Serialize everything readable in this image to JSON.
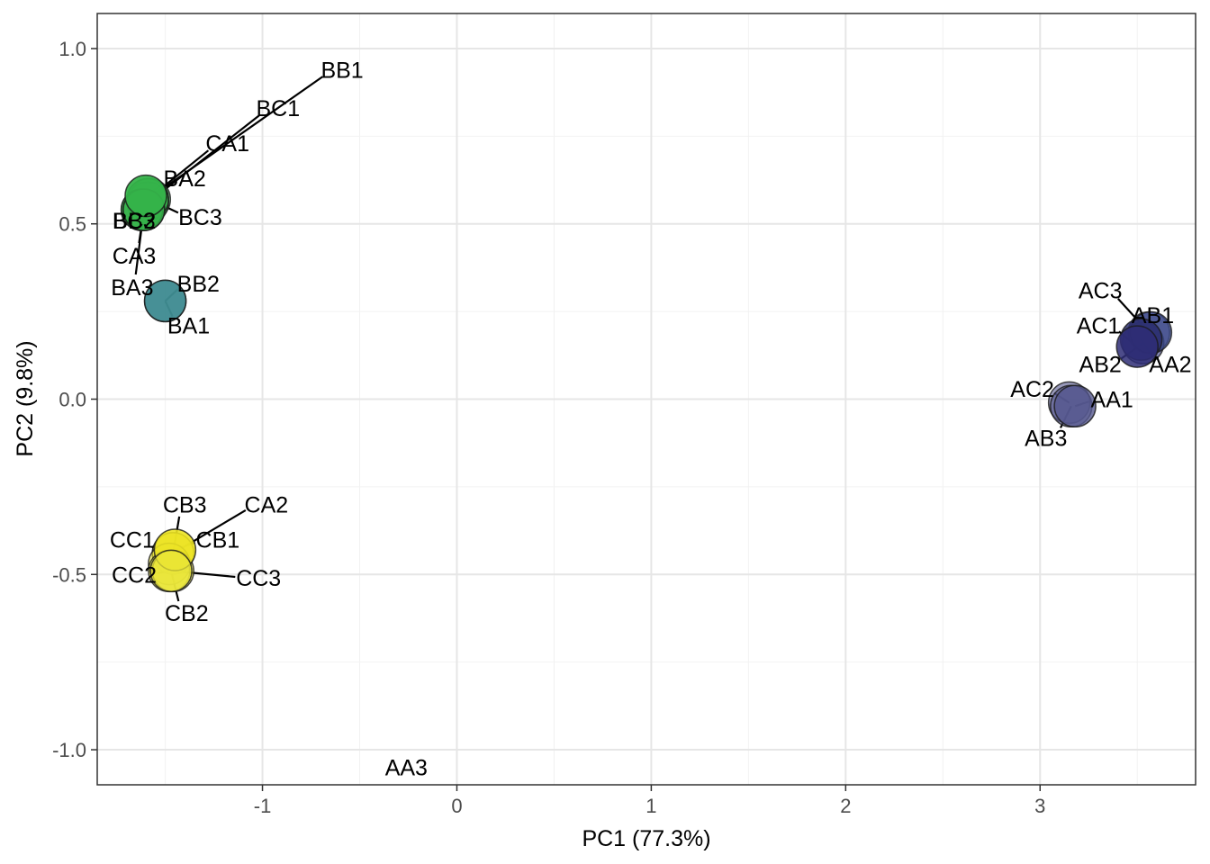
{
  "chart_data": {
    "type": "scatter",
    "title": "",
    "xlabel": "PC1 (77.3%)",
    "ylabel": "PC2 (9.8%)",
    "xlim": [
      -1.85,
      3.8
    ],
    "ylim": [
      -1.1,
      1.1
    ],
    "x_ticks": [
      -1,
      0,
      1,
      2,
      3
    ],
    "x_tick_labels": [
      "-1",
      "0",
      "1",
      "2",
      "3"
    ],
    "y_ticks": [
      -1.0,
      -0.5,
      0.0,
      0.5,
      1.0
    ],
    "y_tick_labels": [
      "-1.0",
      "-0.5",
      "0.0",
      "0.5",
      "1.0"
    ],
    "grid": true,
    "legend": "none",
    "group_colors": {
      "AA": "#440154",
      "AB": "#3b528b",
      "AC": "#482878",
      "BA": "#21908c",
      "BB": "#35b779",
      "BC": "#5ec962",
      "CA": "#cde11d",
      "CB": "#fde725",
      "CC": "#e5e419"
    },
    "points": [
      {
        "label": "AB1",
        "x": 3.57,
        "y": 0.19,
        "color": "#3b4a8b",
        "opacity": 0.75,
        "show": true,
        "lx": 3.58,
        "ly": 0.24
      },
      {
        "label": "AA2",
        "x": 3.52,
        "y": 0.17,
        "color": "#2b2e6e",
        "opacity": 0.85,
        "show": true,
        "lx": 3.67,
        "ly": 0.1
      },
      {
        "label": "AC1",
        "x": 3.5,
        "y": 0.15,
        "color": "#2e2d75",
        "opacity": 0.85,
        "show": true,
        "lx": 3.3,
        "ly": 0.21
      },
      {
        "label": "AC3",
        "x": 3.56,
        "y": 0.19,
        "color": "#353a80",
        "opacity": 0.6,
        "show": false,
        "lx": 3.31,
        "ly": 0.31
      },
      {
        "label": "AB2",
        "x": 3.53,
        "y": 0.16,
        "color": "#353a80",
        "opacity": 0.6,
        "show": false,
        "lx": 3.31,
        "ly": 0.1
      },
      {
        "label": "AA1",
        "x": 3.18,
        "y": -0.02,
        "color": "#55578f",
        "opacity": 0.8,
        "show": true,
        "lx": 3.37,
        "ly": 0.0
      },
      {
        "label": "AC2",
        "x": 3.15,
        "y": -0.01,
        "color": "#55578f",
        "opacity": 0.6,
        "show": false,
        "lx": 2.96,
        "ly": 0.03
      },
      {
        "label": "AB3",
        "x": 3.16,
        "y": -0.02,
        "color": "#55578f",
        "opacity": 0.6,
        "show": false,
        "lx": 3.03,
        "ly": -0.11
      },
      {
        "label": "AA3",
        "x": -0.26,
        "y": -1.14,
        "color": "#440154",
        "opacity": 0.8,
        "show": false,
        "lx": -0.26,
        "ly": -1.05
      },
      {
        "label": "BA2",
        "x": -1.6,
        "y": 0.58,
        "color": "#35b34a",
        "opacity": 0.95,
        "show": true,
        "lx": -1.4,
        "ly": 0.63
      },
      {
        "label": "BC3",
        "x": -1.58,
        "y": 0.57,
        "color": "#35b34a",
        "opacity": 0.6,
        "show": false,
        "lx": -1.32,
        "ly": 0.52
      },
      {
        "label": "BB1",
        "x": -1.59,
        "y": 0.57,
        "color": "#35b34a",
        "opacity": 0.6,
        "show": false,
        "lx": -0.59,
        "ly": 0.94
      },
      {
        "label": "BC1",
        "x": -1.59,
        "y": 0.56,
        "color": "#35b34a",
        "opacity": 0.6,
        "show": false,
        "lx": -0.92,
        "ly": 0.83
      },
      {
        "label": "CA1",
        "x": -1.59,
        "y": 0.57,
        "color": "#35b34a",
        "opacity": 0.6,
        "show": false,
        "lx": -1.18,
        "ly": 0.73
      },
      {
        "label": "BB3",
        "x": -1.62,
        "y": 0.54,
        "color": "#35b34a",
        "opacity": 0.6,
        "show": false,
        "lx": -1.66,
        "ly": 0.51
      },
      {
        "label": "BC2",
        "x": -1.62,
        "y": 0.54,
        "color": "#35b34a",
        "opacity": 0.6,
        "show": false,
        "lx": -1.66,
        "ly": 0.51
      },
      {
        "label": "CA3",
        "x": -1.61,
        "y": 0.54,
        "color": "#35b34a",
        "opacity": 0.6,
        "show": false,
        "lx": -1.66,
        "ly": 0.41
      },
      {
        "label": "BA3",
        "x": -1.61,
        "y": 0.54,
        "color": "#35b34a",
        "opacity": 0.6,
        "show": false,
        "lx": -1.67,
        "ly": 0.32
      },
      {
        "label": "BA1",
        "x": -1.5,
        "y": 0.28,
        "color": "#3f8c91",
        "opacity": 0.9,
        "show": true,
        "lx": -1.38,
        "ly": 0.21
      },
      {
        "label": "BB2",
        "x": -1.5,
        "y": 0.28,
        "color": "#3f8c91",
        "opacity": 0.6,
        "show": false,
        "lx": -1.33,
        "ly": 0.33
      },
      {
        "label": "CB1",
        "x": -1.45,
        "y": -0.43,
        "color": "#ece322",
        "opacity": 0.9,
        "show": true,
        "lx": -1.23,
        "ly": -0.4
      },
      {
        "label": "CB2",
        "x": -1.47,
        "y": -0.49,
        "color": "#e9e63a",
        "opacity": 0.75,
        "show": true,
        "lx": -1.39,
        "ly": -0.61
      },
      {
        "label": "CB3",
        "x": -1.46,
        "y": -0.44,
        "color": "#e9e63a",
        "opacity": 0.6,
        "show": false,
        "lx": -1.4,
        "ly": -0.3
      },
      {
        "label": "CA2",
        "x": -1.46,
        "y": -0.44,
        "color": "#e9e63a",
        "opacity": 0.6,
        "show": false,
        "lx": -0.98,
        "ly": -0.3
      },
      {
        "label": "CC1",
        "x": -1.48,
        "y": -0.47,
        "color": "#e9e63a",
        "opacity": 0.6,
        "show": false,
        "lx": -1.67,
        "ly": -0.4
      },
      {
        "label": "CC2",
        "x": -1.48,
        "y": -0.49,
        "color": "#e9e63a",
        "opacity": 0.6,
        "show": false,
        "lx": -1.66,
        "ly": -0.5
      },
      {
        "label": "CC3",
        "x": -1.46,
        "y": -0.49,
        "color": "#e9e63a",
        "opacity": 0.6,
        "show": false,
        "lx": -1.02,
        "ly": -0.51
      }
    ]
  }
}
